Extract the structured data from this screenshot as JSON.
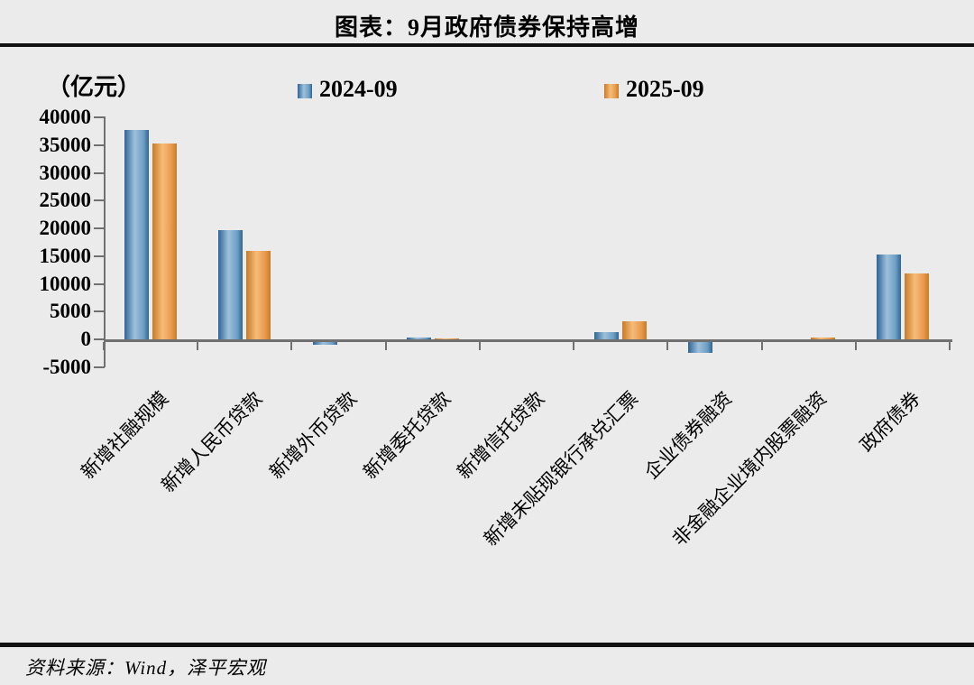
{
  "title": "图表：9月政府债券保持高增",
  "source": "资料来源：Wind，泽平宏观",
  "chart_data": {
    "type": "bar",
    "title": "图表：9月政府债券保持高增",
    "unit_label": "（亿元）",
    "categories": [
      "新增社融规模",
      "新增人民币贷款",
      "新增外币贷款",
      "新增委托贷款",
      "新增信托贷款",
      "新增未贴现银行承兑汇票",
      "企业债券融资",
      "非金融企业境内股票融资",
      "政府债券"
    ],
    "series": [
      {
        "name": "2024-09",
        "color": "#6f9fc4",
        "color_dark": "#2e6496",
        "color_light": "#9dc0da",
        "values": [
          37700,
          19700,
          -500,
          400,
          0,
          1300,
          -2000,
          0,
          15300
        ]
      },
      {
        "name": "2025-09",
        "color": "#e89a4d",
        "color_dark": "#c87a28",
        "color_light": "#f5bc79",
        "values": [
          35300,
          16000,
          0,
          150,
          0,
          3200,
          0,
          350,
          11800
        ]
      }
    ],
    "ylim": [
      -5000,
      40000
    ],
    "y_ticks": [
      40000,
      35000,
      30000,
      25000,
      20000,
      15000,
      10000,
      5000,
      0,
      -5000
    ],
    "grid": false,
    "legend_position": "top",
    "axis_color": "#707070"
  }
}
